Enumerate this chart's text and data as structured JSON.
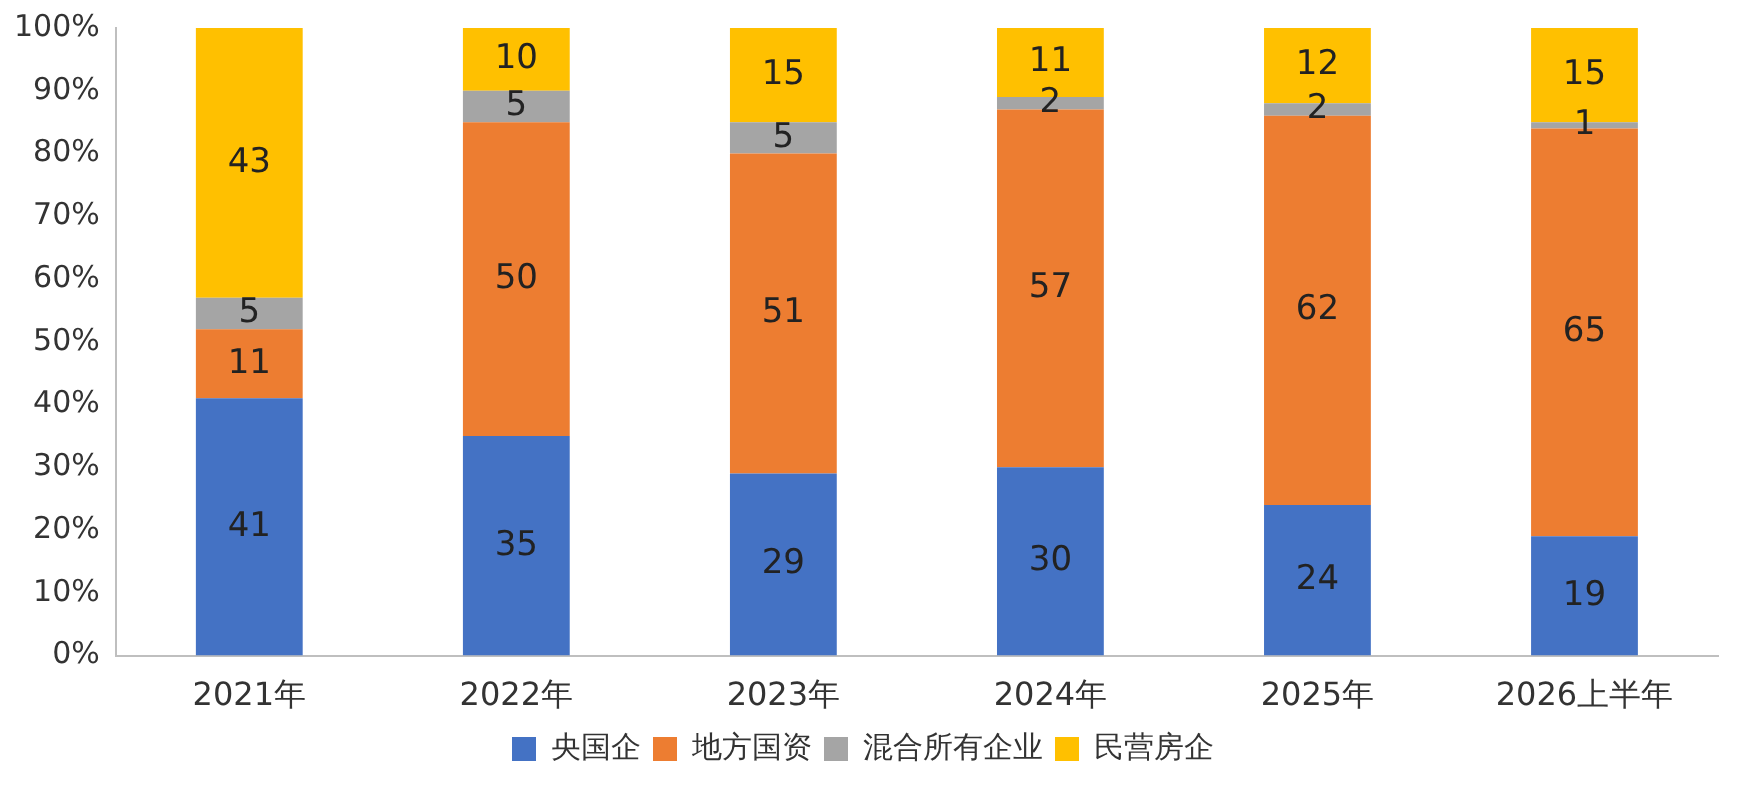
{
  "chart_data": {
    "type": "bar",
    "stacked": true,
    "categories": [
      "2021年",
      "2022年",
      "2023年",
      "2024年",
      "2025年",
      "2026上半年"
    ],
    "series": [
      {
        "name": "央国企",
        "color": "#4472c4",
        "values": [
          41,
          35,
          29,
          30,
          24,
          19
        ]
      },
      {
        "name": "地方国资",
        "color": "#ed7d31",
        "values": [
          11,
          50,
          51,
          57,
          62,
          65
        ]
      },
      {
        "name": "混合所有企业",
        "color": "#a5a5a5",
        "values": [
          5,
          5,
          5,
          2,
          2,
          1
        ]
      },
      {
        "name": "民营房企",
        "color": "#ffc000",
        "values": [
          43,
          10,
          15,
          11,
          12,
          15
        ]
      }
    ],
    "ylim": [
      0,
      100
    ],
    "yticks": [
      {
        "value": 0,
        "label": "0%"
      },
      {
        "value": 10,
        "label": "10%"
      },
      {
        "value": 20,
        "label": "20%"
      },
      {
        "value": 30,
        "label": "30%"
      },
      {
        "value": 40,
        "label": "40%"
      },
      {
        "value": 50,
        "label": "50%"
      },
      {
        "value": 60,
        "label": "60%"
      },
      {
        "value": 70,
        "label": "70%"
      },
      {
        "value": 80,
        "label": "80%"
      },
      {
        "value": 90,
        "label": "90%"
      },
      {
        "value": 100,
        "label": "100%"
      }
    ],
    "grid": false,
    "legend": "bottom",
    "data_labels": true
  }
}
